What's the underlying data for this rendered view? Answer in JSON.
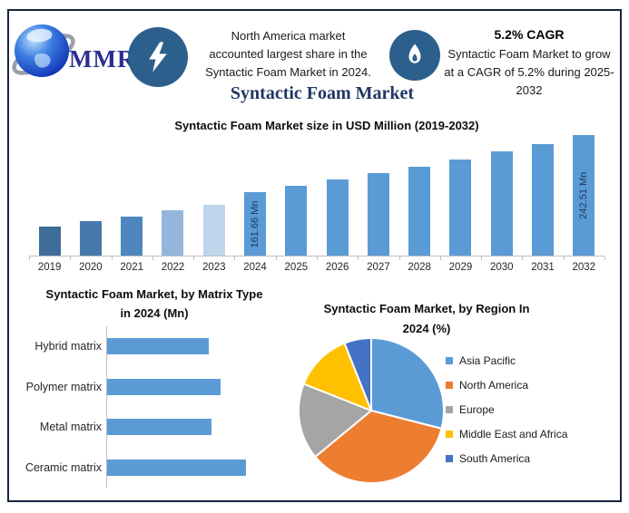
{
  "page": {
    "title": "Syntactic Foam Market",
    "border_color": "#16243D",
    "background": "#FFFFFF",
    "title_color": "#1F3864"
  },
  "header": {
    "logo": {
      "text": "MMR"
    },
    "icons": [
      "lightning-icon",
      "flame-icon"
    ],
    "icon_circle_color": "#2D5F8D",
    "left_note": {
      "lines": [
        "North America market",
        "accounted largest share in the",
        "Syntactic Foam Market in 2024."
      ]
    },
    "cagr_note": {
      "title": "5.2% CAGR",
      "lines": [
        "Syntactic Foam Market to grow",
        "at a CAGR of 5.2% during 2025-",
        "2032"
      ]
    }
  },
  "chart_data": [
    {
      "id": "market-size-by-year",
      "type": "bar",
      "title": "Syntactic Foam Market size in USD Million (2019-2032)",
      "xlabel": "",
      "ylabel": "USD Million",
      "unit": "Mn",
      "categories": [
        "2019",
        "2020",
        "2021",
        "2022",
        "2023",
        "2024",
        "2025",
        "2026",
        "2027",
        "2028",
        "2029",
        "2030",
        "2031",
        "2032"
      ],
      "values": [
        112,
        119,
        126,
        135,
        143,
        161.66,
        170.07,
        178.91,
        188.21,
        198.0,
        208.3,
        219.13,
        230.52,
        242.51
      ],
      "data_labels": [
        {
          "category": "2024",
          "label": "161.66 Mn"
        },
        {
          "category": "2032",
          "label": "242.51 Mn"
        }
      ],
      "bar_colors": [
        "#3F6D99",
        "#4679A9",
        "#4E87BE",
        "#94B6DD",
        "#BFD5EC",
        "#5B9BD5",
        "#5B9BD5",
        "#5B9BD5",
        "#5B9BD5",
        "#5B9BD5",
        "#5B9BD5",
        "#5B9BD5",
        "#5B9BD5",
        "#5B9BD5"
      ],
      "ylim": [
        70,
        252
      ],
      "grid": false,
      "legend": false
    },
    {
      "id": "market-by-matrix-type-2024",
      "type": "bar",
      "orientation": "horizontal",
      "title": "Syntactic Foam Market, by Matrix Type in 2024 (Mn)",
      "title_lines": [
        "Syntactic Foam Market, by Matrix Type",
        "in 2024 (Mn)"
      ],
      "categories": [
        "Hybrid matrix",
        "Polymer matrix",
        "Metal matrix",
        "Ceramic matrix"
      ],
      "values": [
        36,
        40,
        37,
        49
      ],
      "unit": "Mn",
      "bar_color": "#5B9BD5",
      "xlim": [
        0,
        53
      ],
      "grid": false,
      "legend": false
    },
    {
      "id": "market-by-region-2024",
      "type": "pie",
      "title": "Syntactic Foam Market, by Region In 2024 (%)",
      "title_lines": [
        "Syntactic Foam Market, by Region In",
        "2024 (%)"
      ],
      "unit": "%",
      "slices": [
        {
          "label": "Asia Pacific",
          "value": 29,
          "color": "#5B9BD5"
        },
        {
          "label": "North America",
          "value": 35,
          "color": "#ED7D31"
        },
        {
          "label": "Europe",
          "value": 17,
          "color": "#A5A5A5"
        },
        {
          "label": "Middle East and Africa",
          "value": 13,
          "color": "#FFC000"
        },
        {
          "label": "South America",
          "value": 6,
          "color": "#4472C4"
        }
      ],
      "start_angle_deg": 0,
      "direction": "clockwise",
      "legend_position": "right"
    }
  ]
}
